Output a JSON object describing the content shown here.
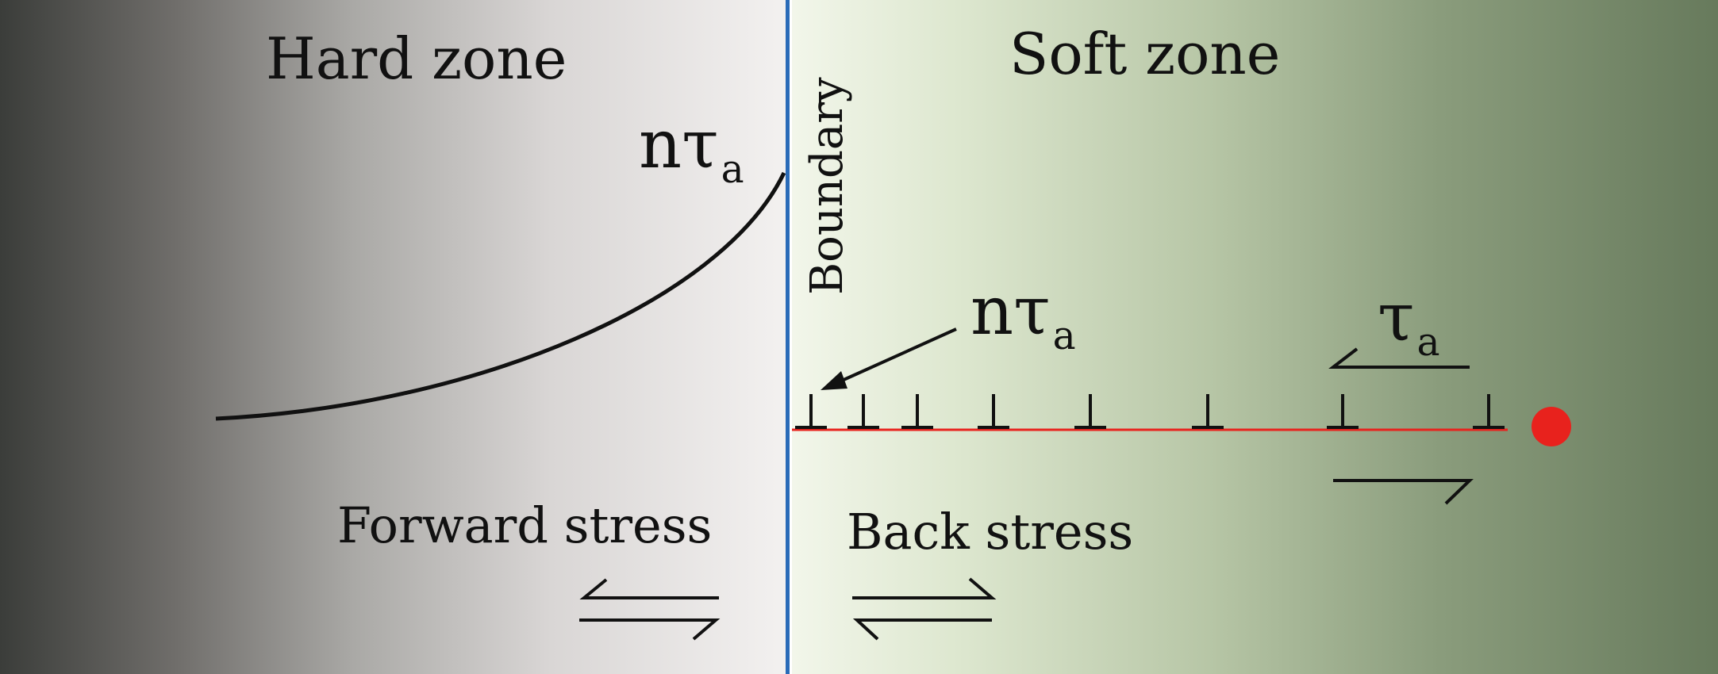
{
  "zones": {
    "hard": "Hard zone",
    "soft": "Soft zone",
    "boundary": "Boundary"
  },
  "stress_labels": {
    "forward": "Forward stress",
    "back": "Back stress"
  },
  "symbols": {
    "n_tau_main": "nτ",
    "tau_main": "τ",
    "subscript": "a"
  },
  "colors": {
    "boundary": "#2a6bb8",
    "slip_plane": "#e8221d",
    "obstacle": "#e8221d"
  }
}
